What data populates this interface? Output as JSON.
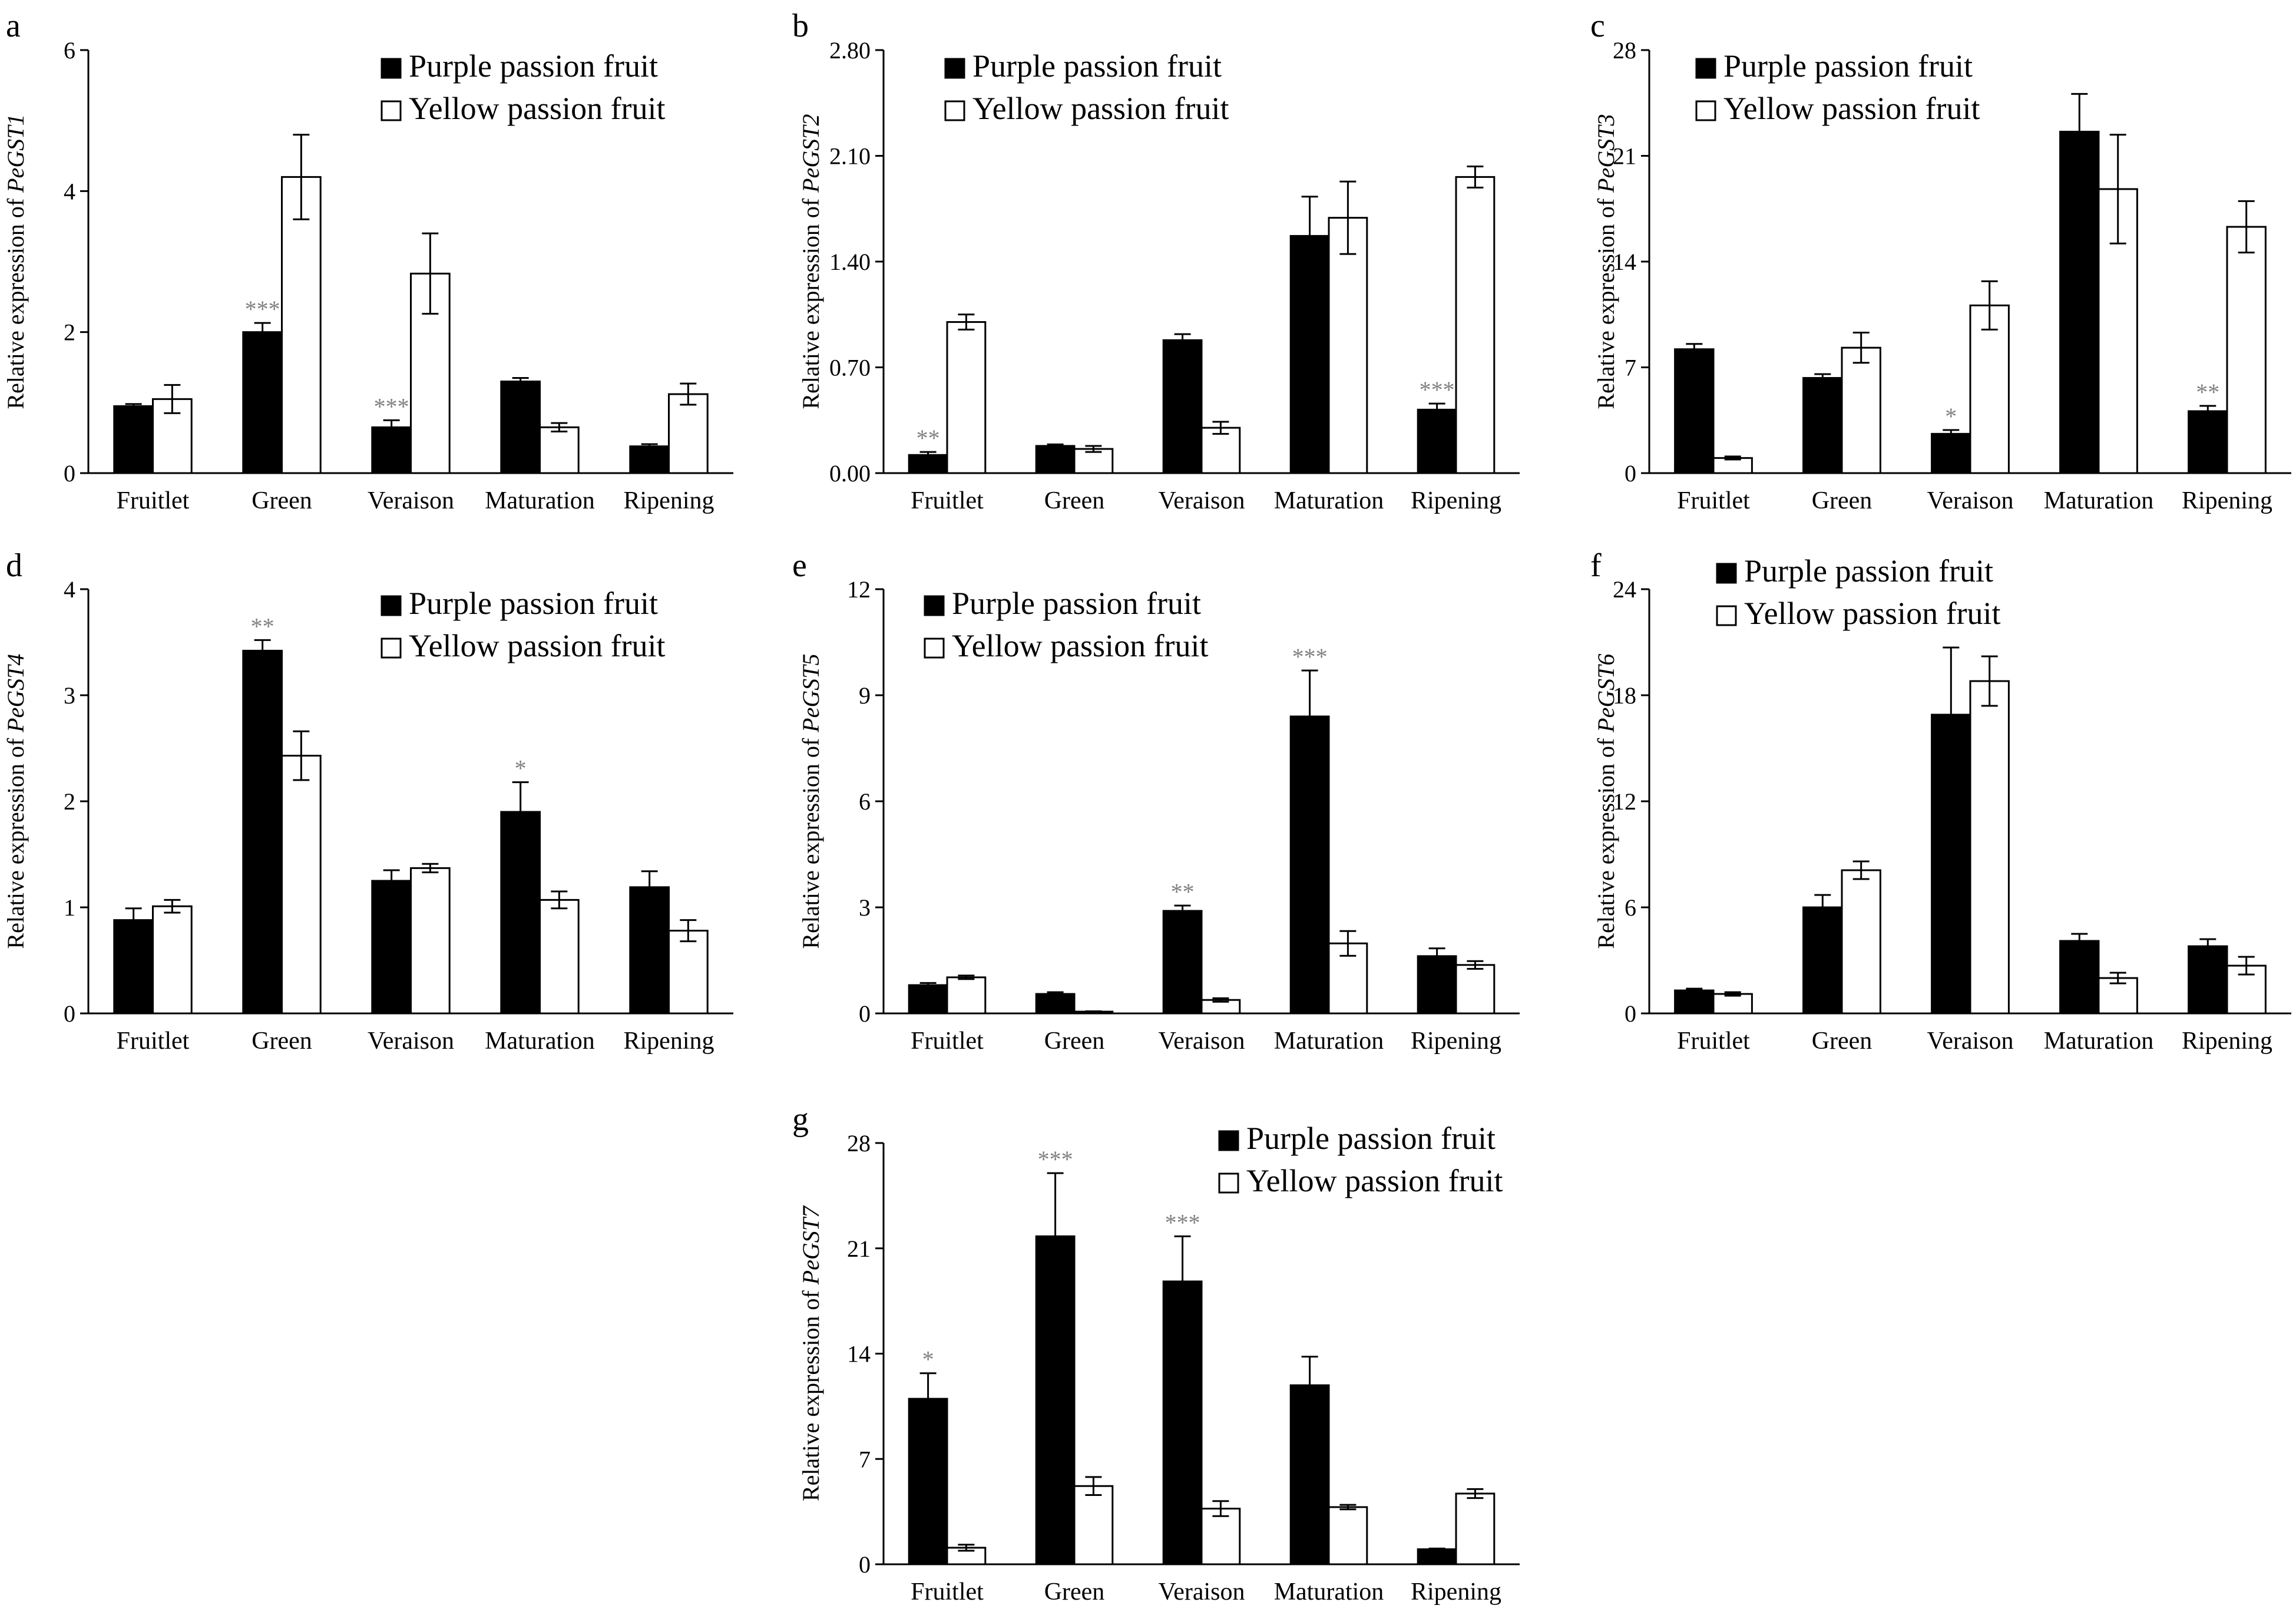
{
  "figure": {
    "legend_purple": "Purple passion fruit",
    "legend_yellow": "Yellow passion fruit",
    "ylabel_prefix": "Relative expression of "
  },
  "chart_data": [
    {
      "type": "bar",
      "panel": "a",
      "gene": "PeGST1",
      "categories": [
        "Fruitlet",
        "Green",
        "Veraison",
        "Maturation",
        "Ripening"
      ],
      "ylim": [
        0,
        6
      ],
      "yticks": [
        "0",
        "2",
        "4",
        "6"
      ],
      "legend_position": "top-right",
      "series": [
        {
          "name": "Purple passion fruit",
          "values": [
            0.95,
            2.0,
            0.65,
            1.3,
            0.38
          ],
          "errors": [
            0.03,
            0.13,
            0.1,
            0.05,
            0.03
          ]
        },
        {
          "name": "Yellow passion fruit",
          "values": [
            1.05,
            4.2,
            2.83,
            0.65,
            1.12
          ],
          "errors": [
            0.2,
            0.6,
            0.57,
            0.06,
            0.15
          ]
        }
      ],
      "significance": [
        {
          "category": "Green",
          "label": "***"
        },
        {
          "category": "Veraison",
          "label": "***"
        }
      ]
    },
    {
      "type": "bar",
      "panel": "b",
      "gene": "PeGST2",
      "categories": [
        "Fruitlet",
        "Green",
        "Veraison",
        "Maturation",
        "Ripening"
      ],
      "ylim": [
        0,
        2.8
      ],
      "yticks": [
        "0.00",
        "0.70",
        "1.40",
        "2.10",
        "2.80"
      ],
      "legend_position": "top-right",
      "series": [
        {
          "name": "Purple passion fruit",
          "values": [
            0.12,
            0.18,
            0.88,
            1.57,
            0.42
          ],
          "errors": [
            0.02,
            0.01,
            0.04,
            0.26,
            0.04
          ]
        },
        {
          "name": "Yellow passion fruit",
          "values": [
            1.0,
            0.16,
            0.3,
            1.69,
            1.96
          ],
          "errors": [
            0.05,
            0.02,
            0.04,
            0.24,
            0.07
          ]
        }
      ],
      "significance": [
        {
          "category": "Fruitlet",
          "label": "**"
        },
        {
          "category": "Ripening",
          "label": "***"
        }
      ]
    },
    {
      "type": "bar",
      "panel": "c",
      "gene": "PeGST3",
      "categories": [
        "Fruitlet",
        "Green",
        "Veraison",
        "Maturation",
        "Ripening"
      ],
      "ylim": [
        0,
        28
      ],
      "yticks": [
        "0",
        "7",
        "14",
        "21",
        "28"
      ],
      "legend_position": "top-right",
      "series": [
        {
          "name": "Purple passion fruit",
          "values": [
            8.2,
            6.3,
            2.6,
            22.6,
            4.1
          ],
          "errors": [
            0.35,
            0.25,
            0.25,
            2.5,
            0.35
          ]
        },
        {
          "name": "Yellow passion fruit",
          "values": [
            1.0,
            8.3,
            11.1,
            18.8,
            16.3
          ],
          "errors": [
            0.1,
            1.0,
            1.6,
            3.6,
            1.7
          ]
        }
      ],
      "significance": [
        {
          "category": "Veraison",
          "label": "*"
        },
        {
          "category": "Ripening",
          "label": "**"
        }
      ]
    },
    {
      "type": "bar",
      "panel": "d",
      "gene": "PeGST4",
      "categories": [
        "Fruitlet",
        "Green",
        "Veraison",
        "Maturation",
        "Ripening"
      ],
      "ylim": [
        0,
        4
      ],
      "yticks": [
        "0",
        "1",
        "2",
        "3",
        "4"
      ],
      "legend_position": "top-right",
      "series": [
        {
          "name": "Purple passion fruit",
          "values": [
            0.88,
            3.42,
            1.25,
            1.9,
            1.19
          ],
          "errors": [
            0.11,
            0.1,
            0.1,
            0.28,
            0.15
          ]
        },
        {
          "name": "Yellow passion fruit",
          "values": [
            1.01,
            2.43,
            1.37,
            1.07,
            0.78
          ],
          "errors": [
            0.06,
            0.23,
            0.04,
            0.08,
            0.1
          ]
        }
      ],
      "significance": [
        {
          "category": "Green",
          "label": "**"
        },
        {
          "category": "Maturation",
          "label": "*"
        }
      ]
    },
    {
      "type": "bar",
      "panel": "e",
      "gene": "PeGST5",
      "categories": [
        "Fruitlet",
        "Green",
        "Veraison",
        "Maturation",
        "Ripening"
      ],
      "ylim": [
        0,
        12
      ],
      "yticks": [
        "0",
        "3",
        "6",
        "9",
        "12"
      ],
      "legend_position": "top-right",
      "series": [
        {
          "name": "Purple passion fruit",
          "values": [
            0.8,
            0.55,
            2.9,
            8.4,
            1.62
          ],
          "errors": [
            0.06,
            0.05,
            0.15,
            1.3,
            0.22
          ]
        },
        {
          "name": "Yellow passion fruit",
          "values": [
            1.02,
            0.05,
            0.38,
            1.98,
            1.37
          ],
          "errors": [
            0.05,
            0.01,
            0.05,
            0.35,
            0.11
          ]
        }
      ],
      "significance": [
        {
          "category": "Veraison",
          "label": "**"
        },
        {
          "category": "Maturation",
          "label": "***"
        }
      ]
    },
    {
      "type": "bar",
      "panel": "f",
      "gene": "PeGST6",
      "categories": [
        "Fruitlet",
        "Green",
        "Veraison",
        "Maturation",
        "Ripening"
      ],
      "ylim": [
        0,
        24
      ],
      "yticks": [
        "0",
        "6",
        "12",
        "18",
        "24"
      ],
      "legend_position": "top-left",
      "series": [
        {
          "name": "Purple passion fruit",
          "values": [
            1.3,
            6.0,
            16.9,
            4.1,
            3.8
          ],
          "errors": [
            0.1,
            0.7,
            3.8,
            0.4,
            0.4
          ]
        },
        {
          "name": "Yellow passion fruit",
          "values": [
            1.1,
            8.1,
            18.8,
            2.0,
            2.7
          ],
          "errors": [
            0.1,
            0.5,
            1.4,
            0.3,
            0.5
          ]
        }
      ],
      "significance": []
    },
    {
      "type": "bar",
      "panel": "g",
      "gene": "PeGST7",
      "categories": [
        "Fruitlet",
        "Green",
        "Veraison",
        "Maturation",
        "Ripening"
      ],
      "ylim": [
        0,
        28
      ],
      "yticks": [
        "0",
        "7",
        "14",
        "21",
        "28"
      ],
      "legend_position": "top-right",
      "series": [
        {
          "name": "Purple passion fruit",
          "values": [
            11.0,
            21.8,
            18.8,
            11.9,
            1.0
          ],
          "errors": [
            1.7,
            4.2,
            3.0,
            1.9,
            0.05
          ]
        },
        {
          "name": "Yellow passion fruit",
          "values": [
            1.1,
            5.2,
            3.7,
            3.8,
            4.7
          ],
          "errors": [
            0.2,
            0.6,
            0.5,
            0.15,
            0.3
          ]
        }
      ],
      "significance": [
        {
          "category": "Fruitlet",
          "label": "*"
        },
        {
          "category": "Green",
          "label": "***"
        },
        {
          "category": "Veraison",
          "label": "***"
        }
      ]
    }
  ]
}
